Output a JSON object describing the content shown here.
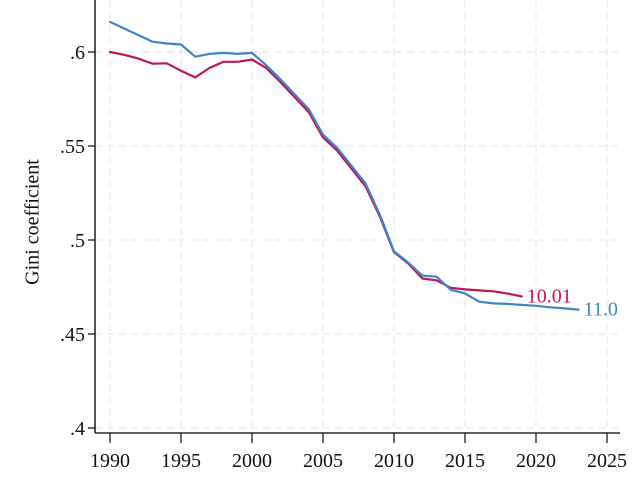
{
  "figure": {
    "background_color": "#ffffff",
    "axis_color": "#2b2b2b",
    "grid_color": "#e3e3e3",
    "tick_text_color": "#111111"
  },
  "chart_data": {
    "type": "line",
    "title": "",
    "xlabel": "",
    "ylabel": "Gini coefficient",
    "grid": true,
    "grid_style": "dashed",
    "legend_position": "end-of-line-labels",
    "xlim": [
      1988.9,
      2025.9
    ],
    "ylim_visible": [
      0.397,
      0.628
    ],
    "x_ticks": [
      1990,
      1995,
      2000,
      2005,
      2010,
      2015,
      2020,
      2025
    ],
    "y_ticks": [
      0.4,
      0.45,
      0.5,
      0.55,
      0.6
    ],
    "y_tick_labels": [
      ".4",
      ".45",
      ".5",
      ".55",
      ".6"
    ],
    "series": [
      {
        "name": "10.01",
        "end_label": "10.01",
        "color": "#c01658",
        "x_start": 1990,
        "x_end": 2019,
        "values": [
          0.6,
          0.5985,
          0.5965,
          0.5938,
          0.594,
          0.59,
          0.5865,
          0.5915,
          0.5948,
          0.5948,
          0.596,
          0.5915,
          0.584,
          0.576,
          0.568,
          0.5545,
          0.5475,
          0.538,
          0.5285,
          0.5125,
          0.4935,
          0.4875,
          0.4795,
          0.4785,
          0.4746,
          0.4737,
          0.4732,
          0.4727,
          0.4715,
          0.47
        ]
      },
      {
        "name": "11.0",
        "end_label": "11.0",
        "color": "#3d84c8",
        "x_start": 1990,
        "x_end": 2023,
        "values": [
          0.616,
          0.6125,
          0.609,
          0.6055,
          0.6045,
          0.604,
          0.5975,
          0.599,
          0.5995,
          0.599,
          0.5995,
          0.593,
          0.5855,
          0.5775,
          0.5695,
          0.556,
          0.549,
          0.5395,
          0.53,
          0.5135,
          0.494,
          0.488,
          0.481,
          0.4805,
          0.4735,
          0.4716,
          0.4672,
          0.4663,
          0.466,
          0.4655,
          0.465,
          0.4642,
          0.4636,
          0.463
        ]
      }
    ]
  }
}
